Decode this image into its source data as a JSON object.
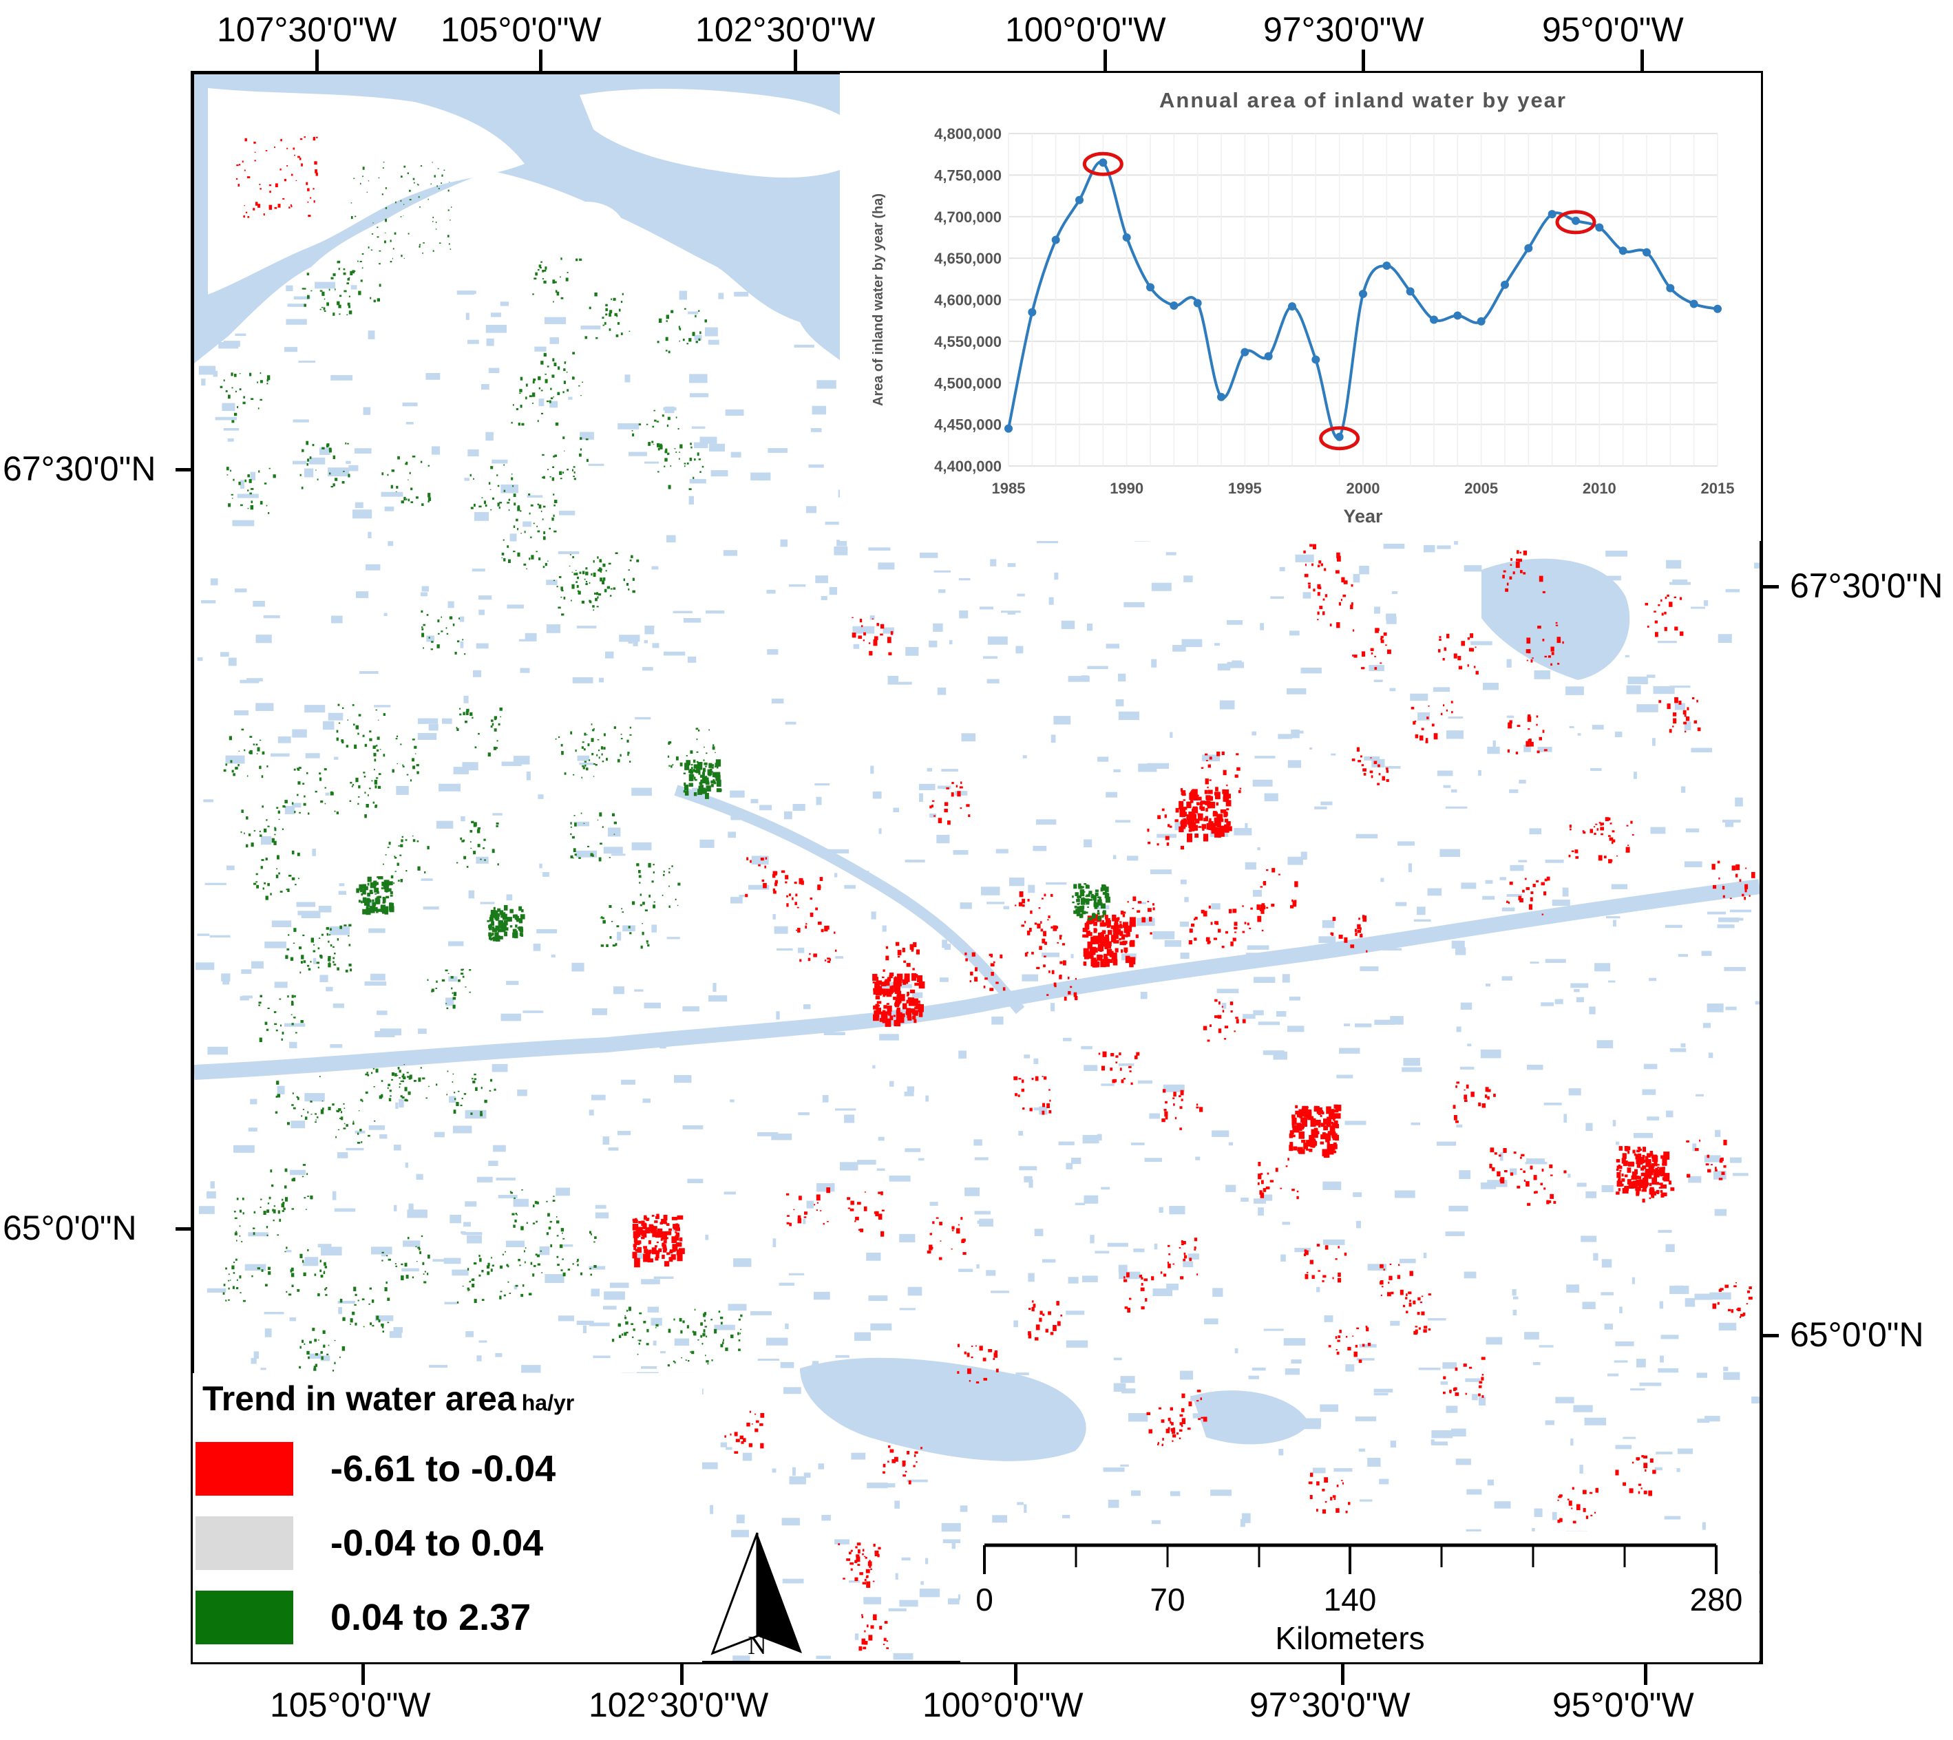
{
  "colors": {
    "decrease": "#ff0000",
    "stable": "#dadada",
    "increase": "#1a7a1a",
    "water": "#c2d8ee",
    "series_line": "#2e7bbd",
    "highlight_circle": "#e01010"
  },
  "top_longitudes": [
    "107°30'0\"W",
    "105°0'0\"W",
    "102°30'0\"W",
    "100°0'0\"W",
    "97°30'0\"W",
    "95°0'0\"W"
  ],
  "bottom_longitudes": [
    "105°0'0\"W",
    "102°30'0\"W",
    "100°0'0\"W",
    "97°30'0\"W",
    "95°0'0\"W"
  ],
  "left_latitudes": [
    "67°30'0\"N",
    "65°0'0\"N"
  ],
  "right_latitudes": [
    "67°30'0\"N",
    "65°0'0\"N"
  ],
  "legend": {
    "title": "Trend in water area",
    "unit": "ha/yr",
    "items": [
      {
        "label": "-6.61 to -0.04",
        "color": "#ff0000"
      },
      {
        "label": "-0.04 to 0.04",
        "color": "#dadada"
      },
      {
        "label": "0.04 to 2.37",
        "color": "#0a730a"
      }
    ]
  },
  "north_arrow": {
    "label": "N",
    "icon": "north-arrow-icon"
  },
  "scale_bar": {
    "labels": [
      "0",
      "70",
      "140",
      "280"
    ],
    "unit": "Kilometers"
  },
  "chart_data": {
    "type": "line",
    "title": "Annual area of inland water by year",
    "xlabel": "Year",
    "ylabel": "Area of inland water by year (ha)",
    "x_ticks": [
      "1985",
      "1990",
      "1995",
      "2000",
      "2005",
      "2010",
      "2015"
    ],
    "y_ticks": [
      "4,400,000",
      "4,450,000",
      "4,500,000",
      "4,550,000",
      "4,600,000",
      "4,650,000",
      "4,700,000",
      "4,750,000",
      "4,800,000"
    ],
    "xlim": [
      1985,
      2015
    ],
    "ylim": [
      4400000,
      4800000
    ],
    "grid": true,
    "smooth": true,
    "series": [
      {
        "x": [
          1985,
          1986,
          1987,
          1988,
          1989,
          1990,
          1991,
          1992,
          1993,
          1994,
          1995,
          1996,
          1997,
          1998,
          1999,
          2000,
          2001,
          2002,
          2003,
          2004,
          2005,
          2006,
          2007,
          2008,
          2009,
          2010,
          2011,
          2012,
          2013,
          2014,
          2015
        ],
        "y": [
          4445000,
          4585000,
          4672000,
          4720000,
          4765000,
          4675000,
          4615000,
          4593000,
          4596000,
          4483000,
          4537000,
          4532000,
          4592000,
          4528000,
          4435000,
          4607000,
          4641000,
          4610000,
          4576000,
          4581000,
          4574000,
          4618000,
          4662000,
          4703000,
          4695000,
          4687000,
          4659000,
          4657000,
          4614000,
          4595000,
          4589000
        ]
      }
    ],
    "highlighted_points": [
      1989,
      1999,
      2009
    ]
  }
}
